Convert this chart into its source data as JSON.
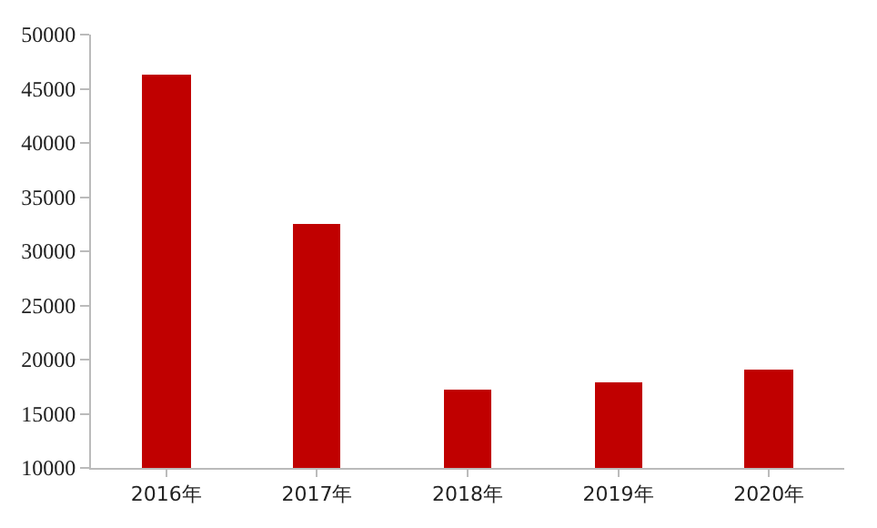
{
  "chart_data": {
    "type": "bar",
    "categories": [
      "2016年",
      "2017年",
      "2018年",
      "2019年",
      "2020年"
    ],
    "values": [
      46300,
      32500,
      17300,
      17900,
      19100
    ],
    "color": "#c00000",
    "ylim": [
      10000,
      50000
    ],
    "yticks": [
      10000,
      15000,
      20000,
      25000,
      30000,
      35000,
      40000,
      45000,
      50000
    ]
  }
}
